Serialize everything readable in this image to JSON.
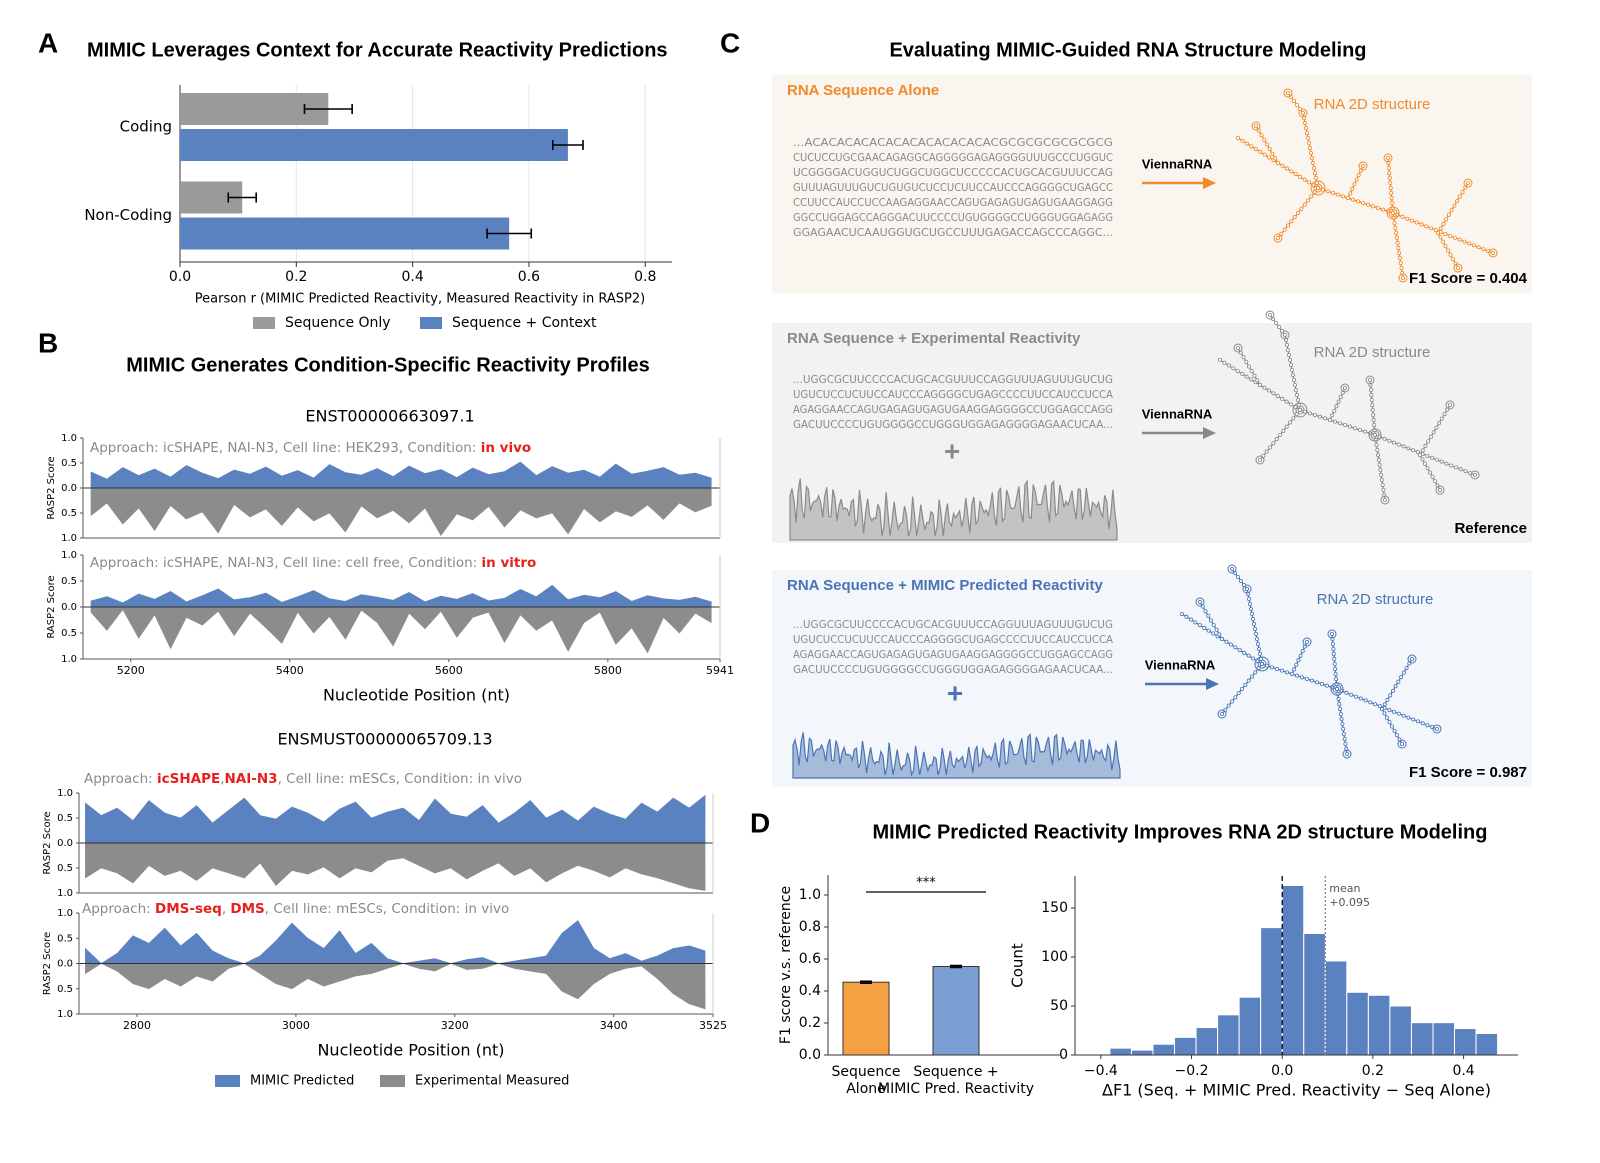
{
  "panel_labels": [
    "A",
    "B",
    "C",
    "D"
  ],
  "panel_b": {
    "title": "MIMIC Generates Condition-Specific Reactivity Profiles"
  },
  "panel_c": {
    "title": "Evaluating MIMIC-Guided RNA Structure Modeling",
    "rows": [
      {
        "heading": "RNA Sequence Alone",
        "sequence": [
          "...ACACACACACACACACACACACACGCGCGCGCGCGCG",
          "CUCUCCUGCGAACAGAGGCAGGGGGAGAGGGGUUUGCCCUGGUC",
          "UCGGGGACUGGUCUGGCUGGCUCCCCCACUGCACGUUUCCAG",
          "GUUUAGUUUGUCUGUGUCUCCUCUUCCAUCCCAGGGGCUGAGCC",
          "CCUUCCAUCCUCCAAGAGGAACCAGUGAGAGUGAGUGAAGGAGG",
          "GGCCUGGAGCCAGGGACUUCCCCUGUGGGGCCUGGGUGGAGAGG",
          "GGAGAACUCAAUGGUGCUGCCUUUGAGACCAGCCCAGGC..."
        ],
        "tool": "ViennaRNA",
        "structure_label": "RNA 2D structure",
        "result": "F1 Score = 0.404"
      },
      {
        "heading": "RNA Sequence + Experimental Reactivity",
        "sequence": [
          "...UGGCGCUUCCCCACUGCACGUUUCCAGGUUUAGUUUGUCUG",
          "UGUCUCCUCUUCCAUCCCAGGGGCUGAGCCCCUUCCAUCCUCCA",
          "AGAGGAACCAGUGAGAGUGAGUGAAGGAGGGGCCUGGAGCCAGG",
          "GACUUCCCCUGUGGGGCCUGGGUGGAGAGGGGAGAACUCAA..."
        ],
        "plus": "+",
        "tool": "ViennaRNA",
        "structure_label": "RNA 2D structure",
        "result": "Reference"
      },
      {
        "heading": "RNA Sequence + MIMIC Predicted Reactivity",
        "sequence": [
          "...UGGCGCUUCCCCACUGCACGUUUCCAGGUUUAGUUUGUCUG",
          "UGUCUCCUCUUCCAUCCCAGGGGCUGAGCCCCUUCCAUCCUCCA",
          "AGAGGAACCAGUGAGAGUGAGUGAAGGAGGGGCCUGGAGCCAGG",
          "GACUUCCCCUGUGGGGCCUGGGUGGAGAGGGGAGAACUCAA..."
        ],
        "plus": "+",
        "tool": "ViennaRNA",
        "structure_label": "RNA 2D structure",
        "result": "F1 Score = 0.987"
      }
    ]
  },
  "panel_d": {
    "title": "MIMIC Predicted Reactivity Improves RNA 2D structure Modeling"
  },
  "chart_data": [
    {
      "type": "hbar",
      "title": "MIMIC Leverages Context for Accurate Reactivity Predictions",
      "categories": [
        "Coding",
        "Non-Coding"
      ],
      "series": [
        {
          "name": "Sequence Only",
          "color": "#9a9a9a",
          "values": [
            0.255,
            0.107
          ],
          "errors": [
            0.041,
            0.024
          ]
        },
        {
          "name": "Sequence + Context",
          "color": "#5b82c0",
          "values": [
            0.667,
            0.566
          ],
          "errors": [
            0.026,
            0.038
          ]
        }
      ],
      "xlabel": "Pearson r (MIMIC Predicted Reactivity, Measured Reactivity in RASP2)",
      "xlim": [
        0,
        0.846
      ],
      "xticks": [
        {
          "value": 0,
          "label": "0.0"
        },
        0.2,
        0.4,
        0.6,
        0.8
      ],
      "grid": true,
      "legend": "bottom"
    },
    {
      "type": "mirror-area",
      "title": "ENST00000663097.1",
      "annotation": [
        {
          "text": "Approach: icSHAPE, NAI-N3, Cell line: HEK293, Condition: ",
          "color": "#8a8a8a"
        },
        {
          "text": "in vivo",
          "color": "#e8201b",
          "weight": "bold"
        }
      ],
      "ylabel": "RASP2 Score",
      "x": [
        5150,
        5170,
        5190,
        5210,
        5230,
        5250,
        5270,
        5290,
        5310,
        5330,
        5350,
        5370,
        5390,
        5410,
        5430,
        5450,
        5470,
        5490,
        5510,
        5530,
        5550,
        5570,
        5590,
        5610,
        5630,
        5650,
        5670,
        5690,
        5710,
        5730,
        5750,
        5770,
        5790,
        5810,
        5830,
        5850,
        5870,
        5890,
        5910,
        5930
      ],
      "series": [
        {
          "name": "MIMIC Predicted",
          "color": "#5b82c0",
          "values": [
            0.32,
            0.18,
            0.41,
            0.25,
            0.38,
            0.22,
            0.45,
            0.3,
            0.19,
            0.36,
            0.28,
            0.42,
            0.24,
            0.35,
            0.2,
            0.47,
            0.31,
            0.26,
            0.39,
            0.23,
            0.44,
            0.29,
            0.37,
            0.21,
            0.4,
            0.27,
            0.33,
            0.52,
            0.25,
            0.43,
            0.3,
            0.36,
            0.22,
            0.48,
            0.28,
            0.34,
            0.41,
            0.26,
            0.3,
            0.2
          ]
        },
        {
          "name": "Experimental Measured",
          "color": "#8c8c8c",
          "values": [
            -0.55,
            -0.3,
            -0.72,
            -0.4,
            -0.85,
            -0.35,
            -0.62,
            -0.48,
            -0.9,
            -0.33,
            -0.58,
            -0.42,
            -0.75,
            -0.38,
            -0.66,
            -0.5,
            -0.88,
            -0.36,
            -0.6,
            -0.45,
            -0.7,
            -0.4,
            -0.95,
            -0.52,
            -0.64,
            -0.37,
            -0.78,
            -0.44,
            -0.6,
            -0.5,
            -0.92,
            -0.41,
            -0.68,
            -0.46,
            -0.57,
            -0.34,
            -0.63,
            -0.3,
            -0.48,
            -0.35
          ]
        }
      ],
      "xlim": [
        5140,
        5941
      ],
      "ylim": [
        -1,
        1
      ],
      "yticks": [
        {
          "value": 1,
          "label": "1.0"
        },
        {
          "value": 0.5,
          "label": "0.5"
        },
        {
          "value": 0,
          "label": "0.0"
        },
        {
          "value": -0.5,
          "label": "0.5"
        },
        {
          "value": -1,
          "label": "1.0"
        }
      ]
    },
    {
      "type": "mirror-area",
      "annotation": [
        {
          "text": "Approach: icSHAPE, NAI-N3, Cell line: cell free, Condition: ",
          "color": "#8a8a8a"
        },
        {
          "text": "in vitro",
          "color": "#e8201b",
          "weight": "bold"
        }
      ],
      "ylabel": "RASP2 Score",
      "xlabel": "Nucleotide Position (nt)",
      "x": [
        5150,
        5170,
        5190,
        5210,
        5230,
        5250,
        5270,
        5290,
        5310,
        5330,
        5350,
        5370,
        5390,
        5410,
        5430,
        5450,
        5470,
        5490,
        5510,
        5530,
        5550,
        5570,
        5590,
        5610,
        5630,
        5650,
        5670,
        5690,
        5710,
        5730,
        5750,
        5770,
        5790,
        5810,
        5830,
        5850,
        5870,
        5890,
        5910,
        5930
      ],
      "series": [
        {
          "color": "#5b82c0",
          "values": [
            0.12,
            0.2,
            0.08,
            0.25,
            0.15,
            0.3,
            0.1,
            0.22,
            0.35,
            0.14,
            0.18,
            0.27,
            0.09,
            0.2,
            0.32,
            0.16,
            0.11,
            0.24,
            0.19,
            0.13,
            0.28,
            0.1,
            0.21,
            0.15,
            0.26,
            0.12,
            0.17,
            0.34,
            0.2,
            0.42,
            0.14,
            0.23,
            0.18,
            0.3,
            0.11,
            0.22,
            0.16,
            0.13,
            0.19,
            0.1
          ]
        },
        {
          "color": "#8c8c8c",
          "values": [
            -0.1,
            -0.45,
            -0.05,
            -0.6,
            -0.15,
            -0.8,
            -0.2,
            -0.35,
            -0.08,
            -0.55,
            -0.12,
            -0.4,
            -0.7,
            -0.1,
            -0.5,
            -0.18,
            -0.62,
            -0.06,
            -0.3,
            -0.75,
            -0.12,
            -0.42,
            -0.08,
            -0.58,
            -0.2,
            -0.1,
            -0.68,
            -0.15,
            -0.45,
            -0.25,
            -0.85,
            -0.3,
            -0.1,
            -0.72,
            -0.4,
            -0.88,
            -0.2,
            -0.5,
            -0.12,
            -0.3
          ]
        }
      ],
      "xlim": [
        5140,
        5941
      ],
      "xticks": [
        5200,
        5400,
        5600,
        5800,
        5941
      ],
      "ylim": [
        -1,
        1
      ],
      "yticks": [
        {
          "value": 1,
          "label": "1.0"
        },
        {
          "value": 0.5,
          "label": "0.5"
        },
        {
          "value": 0,
          "label": "0.0"
        },
        {
          "value": -0.5,
          "label": "0.5"
        },
        {
          "value": -1,
          "label": "1.0"
        }
      ]
    },
    {
      "type": "mirror-area",
      "title": "ENSMUST00000065709.13",
      "annotation": [
        {
          "text": "Approach: ",
          "color": "#8a8a8a"
        },
        {
          "text": "icSHAPE",
          "color": "#e8201b",
          "weight": "bold"
        },
        {
          "text": ",",
          "color": "#8a8a8a"
        },
        {
          "text": "NAI-N3",
          "color": "#e8201b",
          "weight": "bold"
        },
        {
          "text": ", Cell line: mESCs, Condition: in vivo",
          "color": "#8a8a8a"
        }
      ],
      "ylabel": "RASP2 Score",
      "x": [
        2735,
        2755,
        2775,
        2795,
        2815,
        2835,
        2855,
        2875,
        2895,
        2915,
        2935,
        2955,
        2975,
        2995,
        3015,
        3035,
        3055,
        3075,
        3095,
        3115,
        3135,
        3155,
        3175,
        3195,
        3215,
        3235,
        3255,
        3275,
        3295,
        3315,
        3335,
        3355,
        3375,
        3395,
        3415,
        3435,
        3455,
        3475,
        3495,
        3515
      ],
      "series": [
        {
          "color": "#5b82c0",
          "values": [
            0.8,
            0.55,
            0.7,
            0.45,
            0.85,
            0.6,
            0.5,
            0.75,
            0.4,
            0.65,
            0.9,
            0.55,
            0.48,
            0.72,
            0.6,
            0.42,
            0.68,
            0.82,
            0.5,
            0.62,
            0.7,
            0.45,
            0.88,
            0.58,
            0.52,
            0.75,
            0.4,
            0.6,
            0.85,
            0.5,
            0.66,
            0.44,
            0.72,
            0.58,
            0.48,
            0.8,
            0.62,
            0.9,
            0.7,
            0.95
          ]
        },
        {
          "color": "#8c8c8c",
          "values": [
            -0.7,
            -0.5,
            -0.6,
            -0.8,
            -0.45,
            -0.65,
            -0.55,
            -0.75,
            -0.5,
            -0.6,
            -0.7,
            -0.4,
            -0.85,
            -0.55,
            -0.62,
            -0.48,
            -0.7,
            -0.5,
            -0.58,
            -0.35,
            -0.3,
            -0.45,
            -0.6,
            -0.5,
            -0.72,
            -0.55,
            -0.4,
            -0.65,
            -0.5,
            -0.78,
            -0.6,
            -0.45,
            -0.55,
            -0.68,
            -0.5,
            -0.62,
            -0.7,
            -0.8,
            -0.9,
            -0.95
          ]
        }
      ],
      "xlim": [
        2727,
        3525
      ],
      "ylim": [
        -1,
        1
      ],
      "yticks": [
        {
          "value": 1,
          "label": "1.0"
        },
        {
          "value": 0.5,
          "label": "0.5"
        },
        {
          "value": 0,
          "label": "0.0"
        },
        {
          "value": -0.5,
          "label": "0.5"
        },
        {
          "value": -1,
          "label": "1.0"
        }
      ]
    },
    {
      "type": "mirror-area",
      "annotation": [
        {
          "text": "Approach: ",
          "color": "#8a8a8a"
        },
        {
          "text": "DMS-seq",
          "color": "#e8201b",
          "weight": "bold"
        },
        {
          "text": ", ",
          "color": "#8a8a8a"
        },
        {
          "text": "DMS",
          "color": "#e8201b",
          "weight": "bold"
        },
        {
          "text": ", Cell line: mESCs, Condition: in vivo",
          "color": "#8a8a8a"
        }
      ],
      "ylabel": "RASP2 Score",
      "xlabel": "Nucleotide Position (nt)",
      "x": [
        2735,
        2755,
        2775,
        2795,
        2815,
        2835,
        2855,
        2875,
        2895,
        2915,
        2935,
        2955,
        2975,
        2995,
        3015,
        3035,
        3055,
        3075,
        3095,
        3115,
        3135,
        3155,
        3175,
        3195,
        3215,
        3235,
        3255,
        3275,
        3295,
        3315,
        3335,
        3355,
        3375,
        3395,
        3415,
        3435,
        3455,
        3475,
        3495,
        3515
      ],
      "series": [
        {
          "color": "#5b82c0",
          "values": [
            0.3,
            0,
            0.2,
            0.55,
            0.4,
            0.7,
            0.35,
            0.6,
            0.25,
            0.1,
            0,
            0.15,
            0.45,
            0.8,
            0.5,
            0.3,
            0.65,
            0.2,
            0.4,
            0.1,
            0,
            0.05,
            0.1,
            0,
            0.08,
            0.12,
            0,
            0.05,
            0.1,
            0.15,
            0.6,
            0.85,
            0.3,
            0.1,
            0.2,
            0.05,
            0.15,
            0.3,
            0.35,
            0.25
          ]
        },
        {
          "color": "#8c8c8c",
          "values": [
            -0.2,
            0,
            -0.15,
            -0.4,
            -0.5,
            -0.3,
            -0.45,
            -0.25,
            -0.35,
            -0.1,
            0,
            -0.2,
            -0.4,
            -0.5,
            -0.3,
            -0.45,
            -0.35,
            -0.25,
            -0.2,
            -0.1,
            0,
            -0.1,
            -0.15,
            0,
            -0.12,
            -0.1,
            0,
            -0.1,
            -0.15,
            -0.2,
            -0.55,
            -0.7,
            -0.4,
            -0.2,
            -0.1,
            -0.05,
            -0.3,
            -0.6,
            -0.8,
            -0.9
          ]
        }
      ],
      "xlim": [
        2727,
        3525
      ],
      "xticks": [
        2800,
        3000,
        3200,
        3400,
        3525
      ],
      "ylim": [
        -1,
        1
      ],
      "yticks": [
        {
          "value": 1,
          "label": "1.0"
        },
        {
          "value": 0.5,
          "label": "0.5"
        },
        {
          "value": 0,
          "label": "0.0"
        },
        {
          "value": -0.5,
          "label": "0.5"
        },
        {
          "value": -1,
          "label": "1.0"
        }
      ]
    },
    {
      "type": "bar",
      "categories": [
        [
          "Sequence",
          "Alone"
        ],
        [
          "Sequence +",
          "MIMIC Pred. Reactivity"
        ]
      ],
      "values": [
        0.455,
        0.553
      ],
      "errors": [
        0.006,
        0.006
      ],
      "colors": [
        "#f5a142",
        "#7b9fd2"
      ],
      "ylabel": "F1 score v.s. reference",
      "annotation": "***",
      "ylim": [
        0,
        1.125
      ],
      "yticks": [
        {
          "value": 0,
          "label": "0.0"
        },
        0.2,
        0.4,
        0.6,
        0.8,
        {
          "value": 1,
          "label": "1.0"
        }
      ]
    },
    {
      "type": "histogram",
      "bins": [
        -0.4275,
        -0.38,
        -0.3325,
        -0.285,
        -0.2375,
        -0.19,
        -0.1425,
        -0.095,
        -0.0475,
        0,
        0.0475,
        0.095,
        0.1425,
        0.19,
        0.2375,
        0.285,
        0.3325,
        0.38,
        0.4275,
        0.475
      ],
      "counts": [
        1,
        7,
        5,
        11,
        18,
        28,
        41,
        59,
        130,
        173,
        124,
        96,
        64,
        61,
        50,
        33,
        33,
        27,
        22
      ],
      "color": "#5b82c0",
      "reference_line": 0,
      "mean": {
        "value": 0.095,
        "label": "mean",
        "value_label": "+0.095"
      },
      "xlabel": "ΔF1 (Seq. + MIMIC Pred. Reactivity − Seq Alone)",
      "ylabel": "Count",
      "xlim": [
        -0.457,
        0.52
      ],
      "ylim": [
        0,
        182.7
      ],
      "xticks": [
        {
          "value": -0.4,
          "label": "−0.4"
        },
        {
          "value": -0.2,
          "label": "−0.2"
        },
        {
          "value": 0,
          "label": "0.0"
        },
        0.2,
        0.4
      ],
      "yticks": [
        0,
        50,
        100,
        150
      ]
    }
  ]
}
